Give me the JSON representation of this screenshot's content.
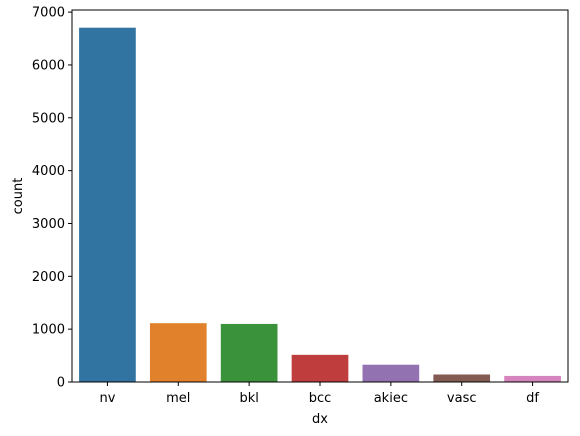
{
  "chart_data": {
    "type": "bar",
    "title": "",
    "xlabel": "dx",
    "ylabel": "count",
    "categories": [
      "nv",
      "mel",
      "bkl",
      "bcc",
      "akiec",
      "vasc",
      "df"
    ],
    "values": [
      6705,
      1113,
      1099,
      514,
      327,
      142,
      115
    ],
    "colors": [
      "#3274a1",
      "#e1812c",
      "#3a923a",
      "#c03d3e",
      "#9372b2",
      "#845b53",
      "#d684bd"
    ],
    "ylim": [
      0,
      7000
    ],
    "yticks": [
      0,
      1000,
      2000,
      3000,
      4000,
      5000,
      6000,
      7000
    ],
    "grid": false,
    "legend": "none"
  }
}
